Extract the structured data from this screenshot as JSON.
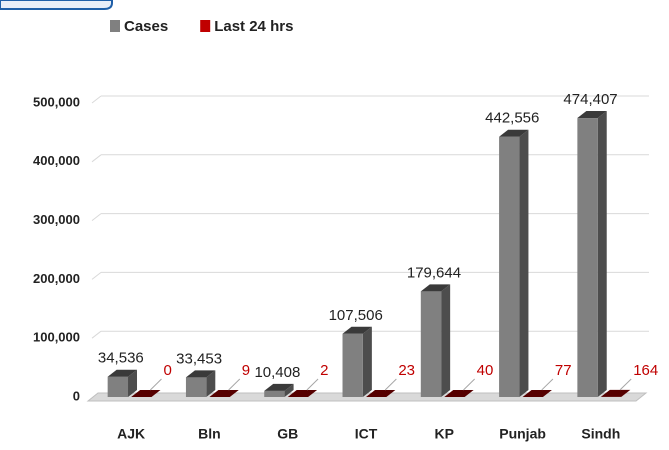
{
  "chart_data": {
    "type": "bar3d",
    "categories": [
      "AJK",
      "Bln",
      "GB",
      "ICT",
      "KP",
      "Punjab",
      "Sindh"
    ],
    "series": [
      {
        "name": "Cases",
        "color": "#808080",
        "values": [
          34536,
          33453,
          10408,
          107506,
          179644,
          442556,
          474407
        ],
        "value_labels": [
          "34,536",
          "33,453",
          "10,408",
          "107,506",
          "179,644",
          "442,556",
          "474,407"
        ]
      },
      {
        "name": "Last 24 hrs",
        "color": "#c00000",
        "values": [
          0,
          9,
          2,
          23,
          40,
          77,
          164
        ]
      }
    ],
    "ylim": [
      0,
      500000
    ],
    "yticks": [
      0,
      {
        "value": 100000,
        "label": "100,000"
      },
      {
        "value": 200000,
        "label": "200,000"
      },
      {
        "value": 300000,
        "label": "300,000"
      },
      {
        "value": 400000,
        "label": "400,000"
      },
      {
        "value": 500000,
        "label": "500,000"
      }
    ],
    "grid": true,
    "legend": "top"
  }
}
